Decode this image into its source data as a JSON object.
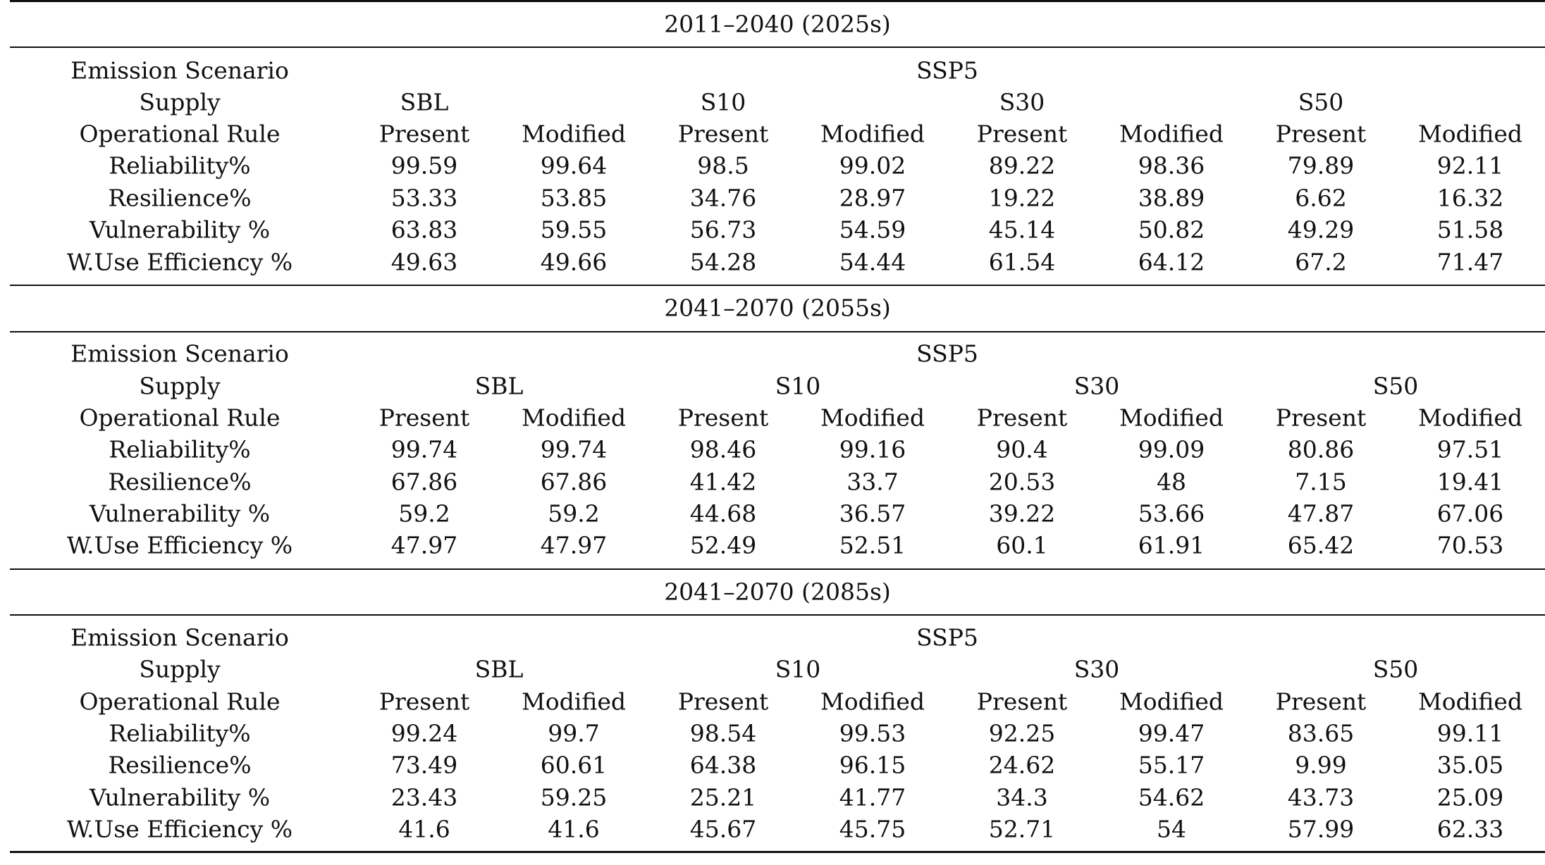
{
  "sections": [
    {
      "period": "2011–2040 (2025s)",
      "emission_label": "Emission Scenario",
      "emission_value": "SSP5",
      "supply_label": "Supply",
      "supplies": [
        "SBL",
        "S10",
        "S30",
        "S50"
      ],
      "rule_label": "Operational Rule",
      "rules": [
        "Present",
        "Modified",
        "Present",
        "Modified",
        "Present",
        "Modified",
        "Present",
        "Modified"
      ],
      "rows": [
        {
          "label": "Reliability%",
          "values": [
            "99.59",
            "99.64",
            "98.5",
            "99.02",
            "89.22",
            "98.36",
            "79.89",
            "92.11"
          ]
        },
        {
          "label": "Resilience%",
          "values": [
            "53.33",
            "53.85",
            "34.76",
            "28.97",
            "19.22",
            "38.89",
            "6.62",
            "16.32"
          ]
        },
        {
          "label": "Vulnerability %",
          "values": [
            "63.83",
            "59.55",
            "56.73",
            "54.59",
            "45.14",
            "50.82",
            "49.29",
            "51.58"
          ]
        },
        {
          "label": "W.Use Efficiency %",
          "values": [
            "49.63",
            "49.66",
            "54.28",
            "54.44",
            "61.54",
            "64.12",
            "67.2",
            "71.47"
          ]
        }
      ]
    },
    {
      "period": "2041–2070 (2055s)",
      "emission_label": "Emission Scenario",
      "emission_value": "SSP5",
      "supply_label": "Supply",
      "supplies": [
        "SBL",
        "S10",
        "S30",
        "S50"
      ],
      "rule_label": "Operational Rule",
      "rules": [
        "Present",
        "Modified",
        "Present",
        "Modified",
        "Present",
        "Modified",
        "Present",
        "Modified"
      ],
      "rows": [
        {
          "label": "Reliability%",
          "values": [
            "99.74",
            "99.74",
            "98.46",
            "99.16",
            "90.4",
            "99.09",
            "80.86",
            "97.51"
          ]
        },
        {
          "label": "Resilience%",
          "values": [
            "67.86",
            "67.86",
            "41.42",
            "33.7",
            "20.53",
            "48",
            "7.15",
            "19.41"
          ]
        },
        {
          "label": "Vulnerability %",
          "values": [
            "59.2",
            "59.2",
            "44.68",
            "36.57",
            "39.22",
            "53.66",
            "47.87",
            "67.06"
          ]
        },
        {
          "label": "W.Use Efficiency %",
          "values": [
            "47.97",
            "47.97",
            "52.49",
            "52.51",
            "60.1",
            "61.91",
            "65.42",
            "70.53"
          ]
        }
      ]
    },
    {
      "period": "2041–2070 (2085s)",
      "emission_label": "Emission Scenario",
      "emission_value": "SSP5",
      "supply_label": "Supply",
      "supplies": [
        "SBL",
        "S10",
        "S30",
        "S50"
      ],
      "rule_label": "Operational Rule",
      "rules": [
        "Present",
        "Modified",
        "Present",
        "Modified",
        "Present",
        "Modified",
        "Present",
        "Modified"
      ],
      "rows": [
        {
          "label": "Reliability%",
          "values": [
            "99.24",
            "99.7",
            "98.54",
            "99.53",
            "92.25",
            "99.47",
            "83.65",
            "99.11"
          ]
        },
        {
          "label": "Resilience%",
          "values": [
            "73.49",
            "60.61",
            "64.38",
            "96.15",
            "24.62",
            "55.17",
            "9.99",
            "35.05"
          ]
        },
        {
          "label": "Vulnerability %",
          "values": [
            "23.43",
            "59.25",
            "25.21",
            "41.77",
            "34.3",
            "54.62",
            "43.73",
            "25.09"
          ]
        },
        {
          "label": "W.Use Efficiency %",
          "values": [
            "41.6",
            "41.6",
            "45.67",
            "45.75",
            "52.71",
            "54",
            "57.99",
            "62.33"
          ]
        }
      ]
    }
  ]
}
